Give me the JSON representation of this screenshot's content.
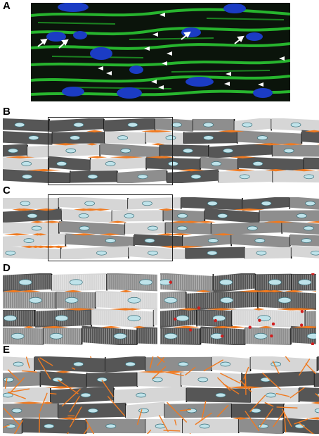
{
  "panels": [
    {
      "label": "A"
    },
    {
      "label": "B"
    },
    {
      "label": "C"
    },
    {
      "label": "D"
    },
    {
      "label": "E"
    }
  ],
  "colors": {
    "micrograph_bg": "#0b140b",
    "membrane_green": "#29c92f",
    "nucleus_blue": "#1b3cc4",
    "cell_dark": "#565656",
    "cell_mid": "#8e8e8e",
    "cell_light": "#d6d6d6",
    "nucleus_fill": "#bfe3ea",
    "fibrosis_orange": "#f07a20",
    "marker_red": "#d21e1e",
    "outline": "#222222"
  },
  "icons": [
    "arrow-icon",
    "arrowhead-icon"
  ]
}
